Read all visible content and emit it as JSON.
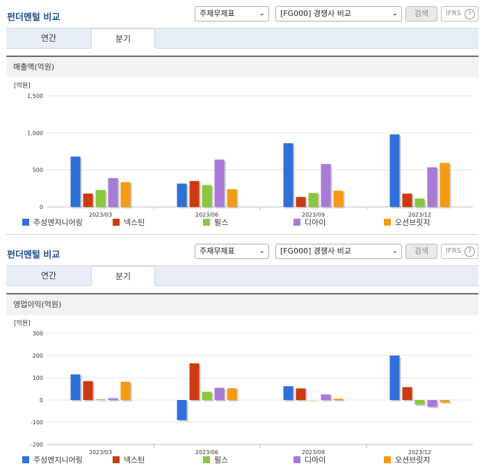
{
  "common": {
    "title": "펀더멘털 비교",
    "select1": "주재무제표",
    "select2": "[FG000] 경쟁사 비교",
    "search_label": "검색",
    "ifrs_label": "IFRS",
    "help_glyph": "?",
    "tab_annual": "연간",
    "tab_quarter": "분기"
  },
  "colors": [
    "#2f6fd8",
    "#cc3a10",
    "#8cc63f",
    "#a87ad6",
    "#f59a11"
  ],
  "chart_data": [
    {
      "type": "bar",
      "title": "매출액(억원)",
      "unit": "[억원]",
      "categories": [
        "2023/03",
        "2023/06",
        "2023/09",
        "2023/12"
      ],
      "yticks": [
        "1,500",
        "1,000",
        "500",
        "0"
      ],
      "ylim": [
        0,
        1500
      ],
      "legend": "bottom",
      "series": [
        {
          "name": "주성엔지니어링",
          "values": [
            680,
            315,
            860,
            980
          ]
        },
        {
          "name": "넥스틴",
          "values": [
            180,
            350,
            135,
            180
          ]
        },
        {
          "name": "필스",
          "values": [
            230,
            295,
            190,
            115
          ]
        },
        {
          "name": "디아이",
          "values": [
            390,
            640,
            580,
            535
          ]
        },
        {
          "name": "오션브릿지",
          "values": [
            335,
            240,
            220,
            595
          ]
        }
      ]
    },
    {
      "type": "bar",
      "title": "영업이익(억원)",
      "unit": "[억원]",
      "categories": [
        "2023/03",
        "2023/06",
        "2023/09",
        "2023/12"
      ],
      "yticks": [
        "300",
        "200",
        "100",
        "0",
        "-100",
        "-200"
      ],
      "ylim": [
        -200,
        300
      ],
      "legend": "bottom",
      "series": [
        {
          "name": "주성엔지니어링",
          "values": [
            115,
            -90,
            62,
            200
          ]
        },
        {
          "name": "넥스틴",
          "values": [
            85,
            165,
            52,
            58
          ]
        },
        {
          "name": "필스",
          "values": [
            3,
            37,
            0,
            -20
          ]
        },
        {
          "name": "디아이",
          "values": [
            8,
            55,
            25,
            -30
          ]
        },
        {
          "name": "오션브릿지",
          "values": [
            82,
            53,
            6,
            -10
          ]
        }
      ]
    }
  ]
}
